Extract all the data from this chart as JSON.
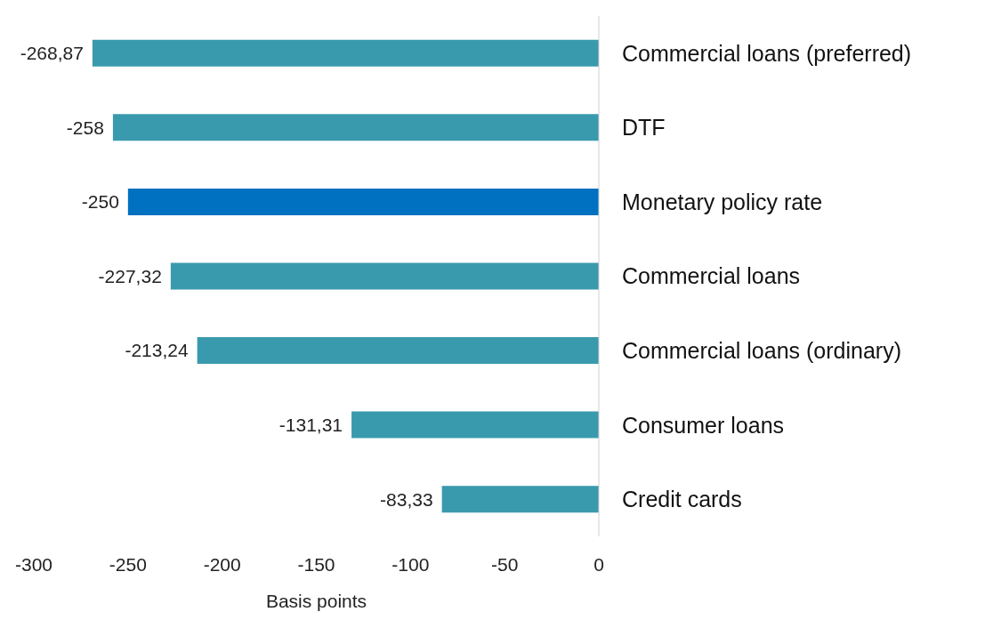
{
  "chart_data": {
    "type": "bar",
    "orientation": "horizontal",
    "categories": [
      "Commercial loans (preferred)",
      "DTF",
      "Monetary policy rate",
      "Commercial loans",
      "Commercial loans (ordinary)",
      "Consumer loans",
      "Credit cards"
    ],
    "values": [
      -268.87,
      -258,
      -250,
      -227.32,
      -213.24,
      -131.31,
      -83.33
    ],
    "colors": [
      "#3a9aad",
      "#3a9aad",
      "#0070c0",
      "#3a9aad",
      "#3a9aad",
      "#3a9aad",
      "#3a9aad"
    ],
    "value_labels": [
      "-268,87",
      "-258",
      "-250",
      "-227,32",
      "-213,24",
      "-131,31",
      "-83,33"
    ],
    "xlim": [
      -300,
      0
    ],
    "xticks": [
      -300,
      -250,
      -200,
      -150,
      -100,
      -50,
      0
    ],
    "xlabel": "Basis points",
    "grid": false
  }
}
